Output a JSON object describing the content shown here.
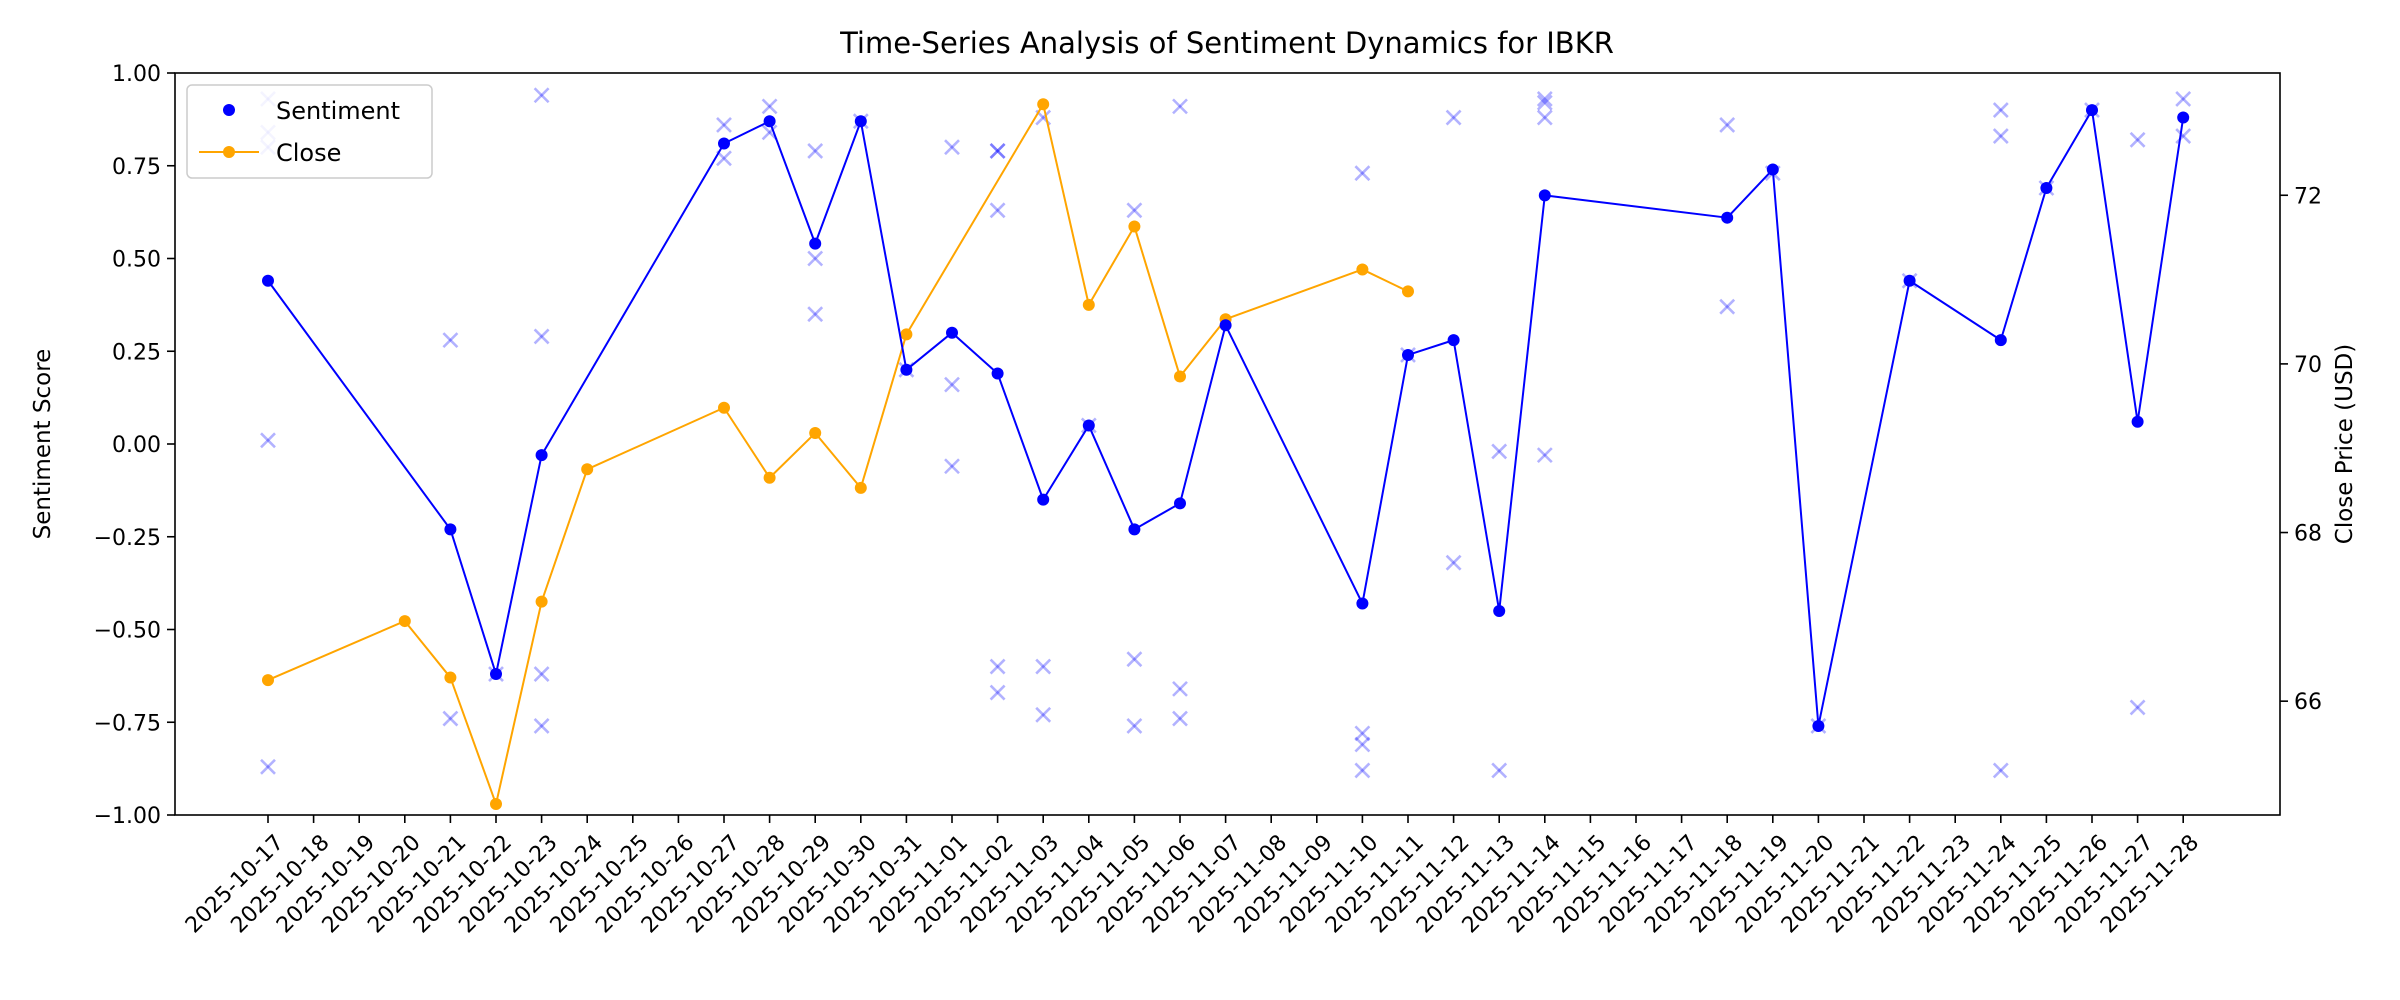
{
  "chart_data": {
    "type": "line",
    "title": "Time-Series Analysis of Sentiment Dynamics for IBKR",
    "xlabel": "",
    "ylabel": "Sentiment Score",
    "y2label": "Close Price (USD)",
    "ylim": [
      -1.0,
      1.0
    ],
    "y2lim": [
      64.65,
      73.45
    ],
    "y_ticks": [
      "1.00",
      "0.75",
      "0.50",
      "0.25",
      "0.00",
      "−0.25",
      "−0.50",
      "−0.75",
      "−1.00"
    ],
    "y_tick_values": [
      1.0,
      0.75,
      0.5,
      0.25,
      0.0,
      -0.25,
      -0.5,
      -0.75,
      -1.0
    ],
    "y2_ticks": [
      "72",
      "70",
      "68",
      "66"
    ],
    "y2_tick_values": [
      72,
      70,
      68,
      66
    ],
    "x_ticks": [
      "2025-10-17",
      "2025-10-18",
      "2025-10-19",
      "2025-10-20",
      "2025-10-21",
      "2025-10-22",
      "2025-10-23",
      "2025-10-24",
      "2025-10-25",
      "2025-10-26",
      "2025-10-27",
      "2025-10-28",
      "2025-10-29",
      "2025-10-30",
      "2025-10-31",
      "2025-11-01",
      "2025-11-02",
      "2025-11-03",
      "2025-11-04",
      "2025-11-05",
      "2025-11-06",
      "2025-11-07",
      "2025-11-08",
      "2025-11-09",
      "2025-11-10",
      "2025-11-11",
      "2025-11-12",
      "2025-11-13",
      "2025-11-14",
      "2025-11-15",
      "2025-11-16",
      "2025-11-17",
      "2025-11-18",
      "2025-11-19",
      "2025-11-20",
      "2025-11-21",
      "2025-11-22",
      "2025-11-23",
      "2025-11-24",
      "2025-11-25",
      "2025-11-26",
      "2025-11-27",
      "2025-11-28"
    ],
    "grid": false,
    "legend_position": "top-left",
    "colors": {
      "sentiment": "#0000ff",
      "close": "#ffa500",
      "raw": "#0000ff"
    },
    "series": [
      {
        "name": "Sentiment",
        "axis": "left",
        "points": [
          [
            "2025-10-17",
            0.44
          ],
          [
            "2025-10-21",
            -0.23
          ],
          [
            "2025-10-22",
            -0.62
          ],
          [
            "2025-10-23",
            -0.03
          ],
          [
            "2025-10-27",
            0.81
          ],
          [
            "2025-10-28",
            0.87
          ],
          [
            "2025-10-29",
            0.54
          ],
          [
            "2025-10-30",
            0.87
          ],
          [
            "2025-10-31",
            0.2
          ],
          [
            "2025-11-01",
            0.3
          ],
          [
            "2025-11-02",
            0.19
          ],
          [
            "2025-11-03",
            -0.15
          ],
          [
            "2025-11-04",
            0.05
          ],
          [
            "2025-11-05",
            -0.23
          ],
          [
            "2025-11-06",
            -0.16
          ],
          [
            "2025-11-07",
            0.32
          ],
          [
            "2025-11-10",
            -0.43
          ],
          [
            "2025-11-11",
            0.24
          ],
          [
            "2025-11-12",
            0.28
          ],
          [
            "2025-11-13",
            -0.45
          ],
          [
            "2025-11-14",
            0.67
          ],
          [
            "2025-11-18",
            0.61
          ],
          [
            "2025-11-19",
            0.74
          ],
          [
            "2025-11-20",
            -0.76
          ],
          [
            "2025-11-22",
            0.44
          ],
          [
            "2025-11-24",
            0.28
          ],
          [
            "2025-11-25",
            0.69
          ],
          [
            "2025-11-26",
            0.9
          ],
          [
            "2025-11-27",
            0.06
          ],
          [
            "2025-11-28",
            0.88
          ]
        ]
      },
      {
        "name": "Close",
        "axis": "right",
        "points": [
          [
            "2025-10-17",
            66.25
          ],
          [
            "2025-10-20",
            66.95
          ],
          [
            "2025-10-21",
            66.28
          ],
          [
            "2025-10-22",
            64.78
          ],
          [
            "2025-10-23",
            67.18
          ],
          [
            "2025-10-24",
            68.75
          ],
          [
            "2025-10-27",
            69.48
          ],
          [
            "2025-10-28",
            68.65
          ],
          [
            "2025-10-29",
            69.18
          ],
          [
            "2025-10-30",
            68.53
          ],
          [
            "2025-10-31",
            70.35
          ],
          [
            "2025-11-03",
            73.08
          ],
          [
            "2025-11-04",
            70.7
          ],
          [
            "2025-11-05",
            71.63
          ],
          [
            "2025-11-06",
            69.85
          ],
          [
            "2025-11-07",
            70.53
          ],
          [
            "2025-11-10",
            71.12
          ],
          [
            "2025-11-11",
            70.86
          ]
        ]
      },
      {
        "name": "",
        "type": "scatter",
        "axis": "left",
        "points": [
          [
            "2025-10-17",
            0.93
          ],
          [
            "2025-10-17",
            0.84
          ],
          [
            "2025-10-17",
            0.8
          ],
          [
            "2025-10-17",
            0.01
          ],
          [
            "2025-10-17",
            -0.87
          ],
          [
            "2025-10-21",
            0.28
          ],
          [
            "2025-10-21",
            -0.74
          ],
          [
            "2025-10-22",
            -0.62
          ],
          [
            "2025-10-23",
            0.94
          ],
          [
            "2025-10-23",
            0.29
          ],
          [
            "2025-10-23",
            -0.62
          ],
          [
            "2025-10-23",
            -0.76
          ],
          [
            "2025-10-27",
            0.86
          ],
          [
            "2025-10-27",
            0.77
          ],
          [
            "2025-10-28",
            0.91
          ],
          [
            "2025-10-28",
            0.84
          ],
          [
            "2025-10-29",
            0.79
          ],
          [
            "2025-10-29",
            0.5
          ],
          [
            "2025-10-29",
            0.35
          ],
          [
            "2025-10-30",
            0.87
          ],
          [
            "2025-10-31",
            0.2
          ],
          [
            "2025-11-01",
            0.8
          ],
          [
            "2025-11-01",
            0.16
          ],
          [
            "2025-11-01",
            -0.06
          ],
          [
            "2025-11-02",
            0.79
          ],
          [
            "2025-11-02",
            0.79
          ],
          [
            "2025-11-02",
            0.63
          ],
          [
            "2025-11-02",
            -0.6
          ],
          [
            "2025-11-02",
            -0.67
          ],
          [
            "2025-11-03",
            0.88
          ],
          [
            "2025-11-03",
            -0.6
          ],
          [
            "2025-11-03",
            -0.73
          ],
          [
            "2025-11-04",
            0.05
          ],
          [
            "2025-11-05",
            0.63
          ],
          [
            "2025-11-05",
            -0.58
          ],
          [
            "2025-11-05",
            -0.76
          ],
          [
            "2025-11-06",
            0.91
          ],
          [
            "2025-11-06",
            -0.66
          ],
          [
            "2025-11-06",
            -0.74
          ],
          [
            "2025-11-10",
            0.73
          ],
          [
            "2025-11-10",
            -0.78
          ],
          [
            "2025-11-10",
            -0.81
          ],
          [
            "2025-11-10",
            -0.88
          ],
          [
            "2025-11-11",
            0.24
          ],
          [
            "2025-11-12",
            0.88
          ],
          [
            "2025-11-12",
            -0.32
          ],
          [
            "2025-11-13",
            -0.02
          ],
          [
            "2025-11-13",
            -0.88
          ],
          [
            "2025-11-14",
            0.93
          ],
          [
            "2025-11-14",
            0.92
          ],
          [
            "2025-11-14",
            0.88
          ],
          [
            "2025-11-14",
            -0.03
          ],
          [
            "2025-11-18",
            0.86
          ],
          [
            "2025-11-18",
            0.37
          ],
          [
            "2025-11-19",
            0.73
          ],
          [
            "2025-11-20",
            -0.76
          ],
          [
            "2025-11-22",
            0.44
          ],
          [
            "2025-11-24",
            0.9
          ],
          [
            "2025-11-24",
            0.83
          ],
          [
            "2025-11-24",
            -0.88
          ],
          [
            "2025-11-25",
            0.69
          ],
          [
            "2025-11-26",
            0.9
          ],
          [
            "2025-11-27",
            0.82
          ],
          [
            "2025-11-27",
            -0.71
          ],
          [
            "2025-11-28",
            0.93
          ],
          [
            "2025-11-28",
            0.83
          ]
        ]
      }
    ]
  }
}
